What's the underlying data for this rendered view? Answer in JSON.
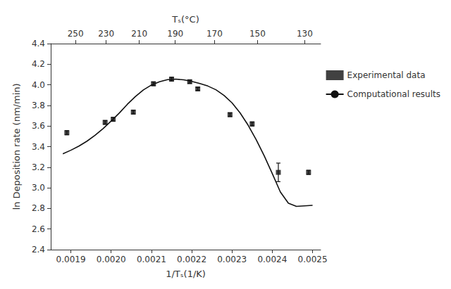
{
  "chart_data": {
    "type": "line",
    "xlabel": "1/Tₛ(1/K)",
    "ylabel": "ln Deposition rate (nm/min)",
    "x2label": "Tₛ(°C)",
    "xlim": [
      0.00185,
      0.00252
    ],
    "ylim": [
      2.4,
      4.4
    ],
    "x2lim": [
      0.00185,
      0.00252
    ],
    "xticks": [
      0.0019,
      {
        "value": 0.002,
        "label": "0.0020"
      },
      0.0021,
      0.0022,
      0.0023,
      0.0024,
      0.0025
    ],
    "yticks": [
      2.4,
      2.6,
      2.8,
      {
        "value": 3,
        "label": "3.0"
      },
      3.2,
      3.4,
      3.6,
      3.8,
      {
        "value": 4,
        "label": "4.0"
      },
      4.2,
      4.4
    ],
    "x2ticks": [
      {
        "value": 0.0019114977,
        "label": "250"
      },
      {
        "value": 0.0019874788,
        "label": "230"
      },
      {
        "value": 0.0020697506,
        "label": "210"
      },
      {
        "value": 0.0021591277,
        "label": "190"
      },
      {
        "value": 0.0022565723,
        "label": "170"
      },
      {
        "value": 0.0023632282,
        "label": "150"
      },
      {
        "value": 0.0024804663,
        "label": "130"
      }
    ],
    "grid": false,
    "legend": "right",
    "series": [
      {
        "name": "Experimental data",
        "type": "scatter",
        "marker": "square",
        "color": "#111111",
        "x": [
          0.00189,
          0.001985,
          0.002005,
          0.002055,
          0.002105,
          0.00215,
          0.002195,
          0.002215,
          0.002295,
          0.00235,
          0.002415,
          0.00249
        ],
        "values": [
          3.535,
          3.635,
          3.665,
          3.735,
          4.01,
          4.055,
          4.03,
          3.96,
          3.71,
          3.62,
          3.15,
          3.15
        ],
        "errors": [
          0.02,
          0.018,
          0.018,
          0.018,
          0.018,
          0.018,
          0.015,
          0.015,
          0.018,
          0.02,
          0.09,
          0.02
        ]
      },
      {
        "name": "Computational results",
        "type": "line",
        "color": "#111111",
        "x": [
          0.00188,
          0.0019,
          0.00192,
          0.00194,
          0.00196,
          0.00198,
          0.002,
          0.00202,
          0.00204,
          0.00206,
          0.00208,
          0.0021,
          0.00212,
          0.00214,
          0.00216,
          0.00218,
          0.0022,
          0.00222,
          0.00224,
          0.00226,
          0.00228,
          0.0023,
          0.00232,
          0.00234,
          0.00236,
          0.00238,
          0.0024,
          0.00242,
          0.00244,
          0.00246,
          0.00248,
          0.0025
        ],
        "values": [
          3.33,
          3.365,
          3.405,
          3.453,
          3.51,
          3.575,
          3.648,
          3.725,
          3.81,
          3.885,
          3.95,
          3.998,
          4.03,
          4.05,
          4.055,
          4.048,
          4.033,
          4.013,
          3.988,
          3.952,
          3.898,
          3.825,
          3.728,
          3.608,
          3.468,
          3.31,
          3.138,
          2.96,
          2.85,
          2.82,
          2.825,
          2.83
        ]
      }
    ]
  }
}
